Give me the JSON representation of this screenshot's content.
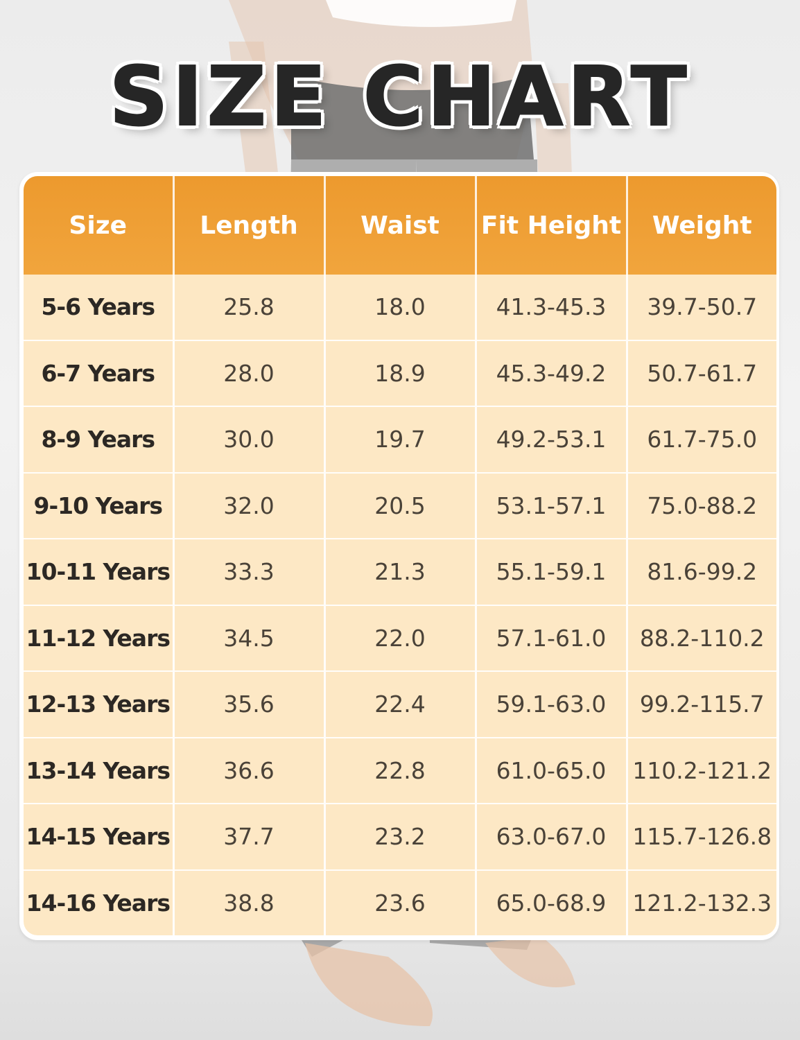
{
  "title": "SIZE CHART",
  "columns": [
    "Size",
    "Length",
    "Waist",
    "Fit Height",
    "Weight"
  ],
  "rows": [
    [
      "5-6 Years",
      "25.8",
      "18.0",
      "41.3-45.3",
      "39.7-50.7"
    ],
    [
      "6-7 Years",
      "28.0",
      "18.9",
      "45.3-49.2",
      "50.7-61.7"
    ],
    [
      "8-9 Years",
      "30.0",
      "19.7",
      "49.2-53.1",
      "61.7-75.0"
    ],
    [
      "9-10 Years",
      "32.0",
      "20.5",
      "53.1-57.1",
      "75.0-88.2"
    ],
    [
      "10-11 Years",
      "33.3",
      "21.3",
      "55.1-59.1",
      "81.6-99.2"
    ],
    [
      "11-12 Years",
      "34.5",
      "22.0",
      "57.1-61.0",
      "88.2-110.2"
    ],
    [
      "12-13 Years",
      "35.6",
      "22.4",
      "59.1-63.0",
      "99.2-115.7"
    ],
    [
      "13-14 Years",
      "36.6",
      "22.8",
      "61.0-65.0",
      "110.2-121.2"
    ],
    [
      "14-15 Years",
      "37.7",
      "23.2",
      "63.0-67.0",
      "115.7-126.8"
    ],
    [
      "14-16 Years",
      "38.8",
      "23.6",
      "65.0-68.9",
      "121.2-132.3"
    ]
  ],
  "colors": {
    "header": "#EC9420",
    "row_fill": "#FCE2B6",
    "title_text": "#262626"
  }
}
